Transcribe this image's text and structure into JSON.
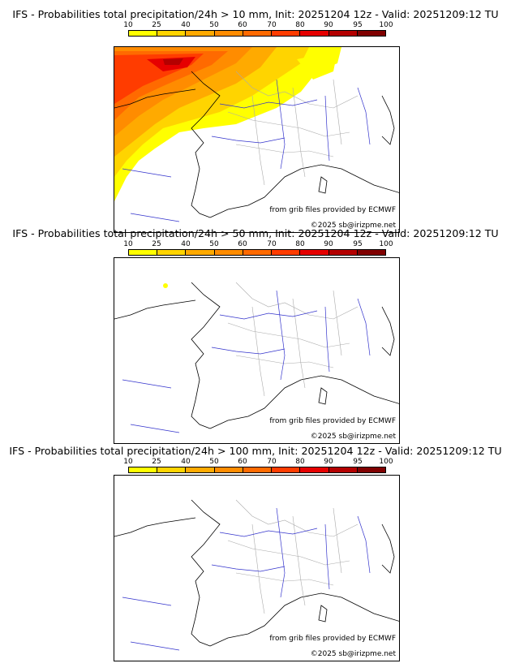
{
  "panels": [
    {
      "title": "IFS - Probabilities total precipitation/24h > 10 mm, Init: 20251204 12z - Valid: 20251209:12 TU",
      "threshold_mm": 10
    },
    {
      "title": "IFS - Probabilities total precipitation/24h > 50 mm, Init: 20251204 12z - Valid: 20251209:12 TU",
      "threshold_mm": 50
    },
    {
      "title": "IFS - Probabilities total precipitation/24h > 100 mm, Init: 20251204 12z - Valid: 20251209:12 TU",
      "threshold_mm": 100
    }
  ],
  "scale": {
    "labels": [
      "10",
      "25",
      "40",
      "50",
      "60",
      "70",
      "80",
      "90",
      "95",
      "100"
    ],
    "colors": [
      "#ffff00",
      "#ffd400",
      "#ffaa00",
      "#ff8c00",
      "#ff6a00",
      "#ff3c00",
      "#e60000",
      "#b40000",
      "#800000",
      "#500000"
    ]
  },
  "credits": {
    "source": "from grib files provided by ECMWF",
    "copyright": "©2025 sb@irizpme.net"
  }
}
